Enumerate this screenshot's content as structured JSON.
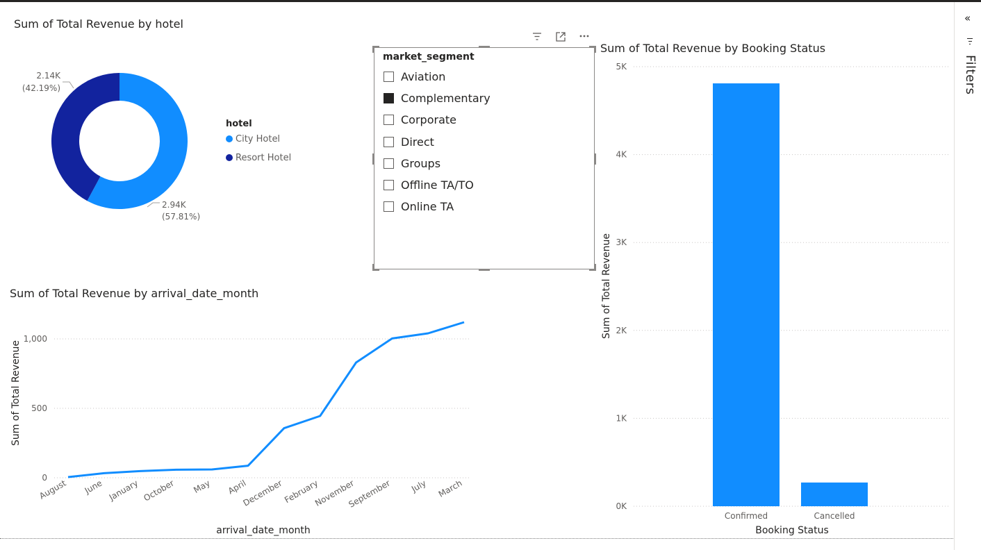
{
  "donut": {
    "title": "Sum of Total Revenue by hotel",
    "legend_title": "hotel",
    "slices": [
      {
        "name": "City Hotel",
        "value": 2.94,
        "value_label": "2.94K",
        "pct_label": "(57.81%)",
        "color": "#118DFF"
      },
      {
        "name": "Resort Hotel",
        "value": 2.14,
        "value_label": "2.14K",
        "pct_label": "(42.19%)",
        "color": "#12239E"
      }
    ]
  },
  "slicer": {
    "header": "market_segment",
    "items": [
      {
        "label": "Aviation",
        "checked": false
      },
      {
        "label": "Complementary",
        "checked": true
      },
      {
        "label": "Corporate",
        "checked": false
      },
      {
        "label": "Direct",
        "checked": false
      },
      {
        "label": "Groups",
        "checked": false
      },
      {
        "label": "Offline TA/TO",
        "checked": false
      },
      {
        "label": "Online TA",
        "checked": false
      }
    ],
    "header_icons": [
      "filter-icon",
      "focus-mode-icon",
      "more-options-icon"
    ]
  },
  "line": {
    "title": "Sum of Total Revenue by arrival_date_month"
  },
  "bar": {
    "title": "Sum of Total Revenue by Booking Status"
  },
  "filters_pane": {
    "label": "Filters",
    "collapse_glyph": "«"
  },
  "chart_data": [
    {
      "type": "pie",
      "title": "Sum of Total Revenue by hotel",
      "legend_title": "hotel",
      "categories": [
        "City Hotel",
        "Resort Hotel"
      ],
      "values": [
        2940,
        2140
      ],
      "percentages": [
        57.81,
        42.19
      ],
      "legend_placement": "right"
    },
    {
      "type": "line",
      "title": "Sum of Total Revenue by arrival_date_month",
      "xlabel": "arrival_date_month",
      "ylabel": "Sum of Total Revenue",
      "categories": [
        "August",
        "June",
        "January",
        "October",
        "May",
        "April",
        "December",
        "February",
        "November",
        "September",
        "July",
        "March"
      ],
      "values": [
        5,
        33,
        48,
        58,
        60,
        87,
        357,
        445,
        830,
        1003,
        1040,
        1120
      ],
      "ylim": [
        0,
        1200
      ],
      "yticks": [
        0,
        500,
        1000
      ],
      "ytick_labels": [
        "0",
        "500",
        "1,000"
      ],
      "grid": true,
      "color": "#118DFF"
    },
    {
      "type": "bar",
      "title": "Sum of Total Revenue by Booking Status",
      "xlabel": "Booking Status",
      "ylabel": "Sum of Total Revenue",
      "categories": [
        "Confirmed",
        "Cancelled"
      ],
      "values": [
        4810,
        270
      ],
      "ylim": [
        0,
        5000
      ],
      "yticks": [
        0,
        1000,
        2000,
        3000,
        4000,
        5000
      ],
      "ytick_labels": [
        "0K",
        "1K",
        "2K",
        "3K",
        "4K",
        "5K"
      ],
      "grid": true,
      "color": "#118DFF"
    }
  ]
}
